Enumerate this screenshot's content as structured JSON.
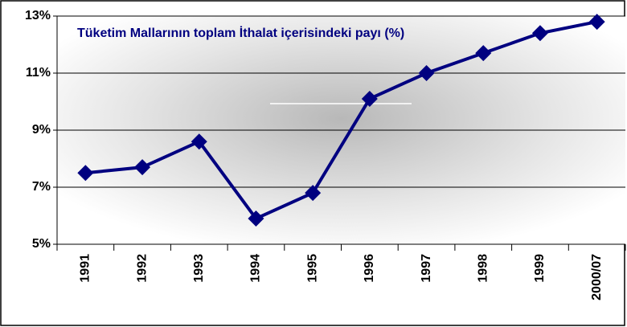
{
  "chart_data": {
    "type": "line",
    "title": "Tüketim Mallarının toplam İthalat içerisindeki payı (%)",
    "categories": [
      "1991",
      "1992",
      "1993",
      "1994",
      "1995",
      "1996",
      "1997",
      "1998",
      "1999",
      "2000/07"
    ],
    "series": [
      {
        "name": "Tüketim Mallarının toplam İthalat içerisindeki payı (%)",
        "color": "#000080",
        "values": [
          7.5,
          7.7,
          8.6,
          5.9,
          6.8,
          10.1,
          11.0,
          11.7,
          12.4,
          12.8
        ]
      }
    ],
    "ylim": [
      5,
      13
    ],
    "yticks": [
      {
        "value": 5,
        "label": "5%"
      },
      {
        "value": 7,
        "label": "7%"
      },
      {
        "value": 9,
        "label": "9%"
      },
      {
        "value": 11,
        "label": "11%"
      },
      {
        "value": 13,
        "label": "13%"
      }
    ],
    "grid": true
  }
}
